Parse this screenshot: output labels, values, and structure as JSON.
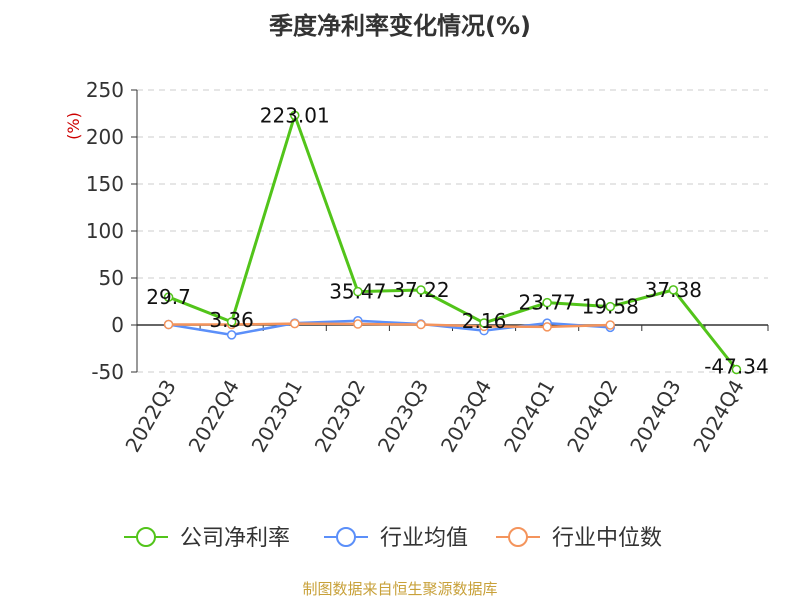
{
  "footer": "制图数据来自恒生聚源数据库",
  "chart_data": {
    "type": "line",
    "title": "季度净利率变化情况(%)",
    "ylabel": "(%)",
    "ylim": [
      -50,
      250
    ],
    "yticks": [
      -50,
      0,
      50,
      100,
      150,
      200,
      250
    ],
    "grid": true,
    "legend_position": "bottom",
    "categories": [
      "2022Q3",
      "2022Q4",
      "2023Q1",
      "2023Q2",
      "2023Q3",
      "2023Q4",
      "2024Q1",
      "2024Q2",
      "2024Q3",
      "2024Q4"
    ],
    "series": [
      {
        "name": "公司净利率",
        "color": "#52c41a",
        "values": [
          29.7,
          3.36,
          223.01,
          35.47,
          37.22,
          2.16,
          23.77,
          19.58,
          37.38,
          -47.34
        ],
        "labels": [
          "29.7",
          "3.36",
          "223.01",
          "35.47",
          "37.22",
          "2.16",
          "23.77",
          "19.58",
          "37.38",
          "-47.34"
        ]
      },
      {
        "name": "行业均值",
        "color": "#5b8ff9",
        "values": [
          0.5,
          -10.5,
          2.0,
          4.5,
          1.0,
          -6.0,
          2.0,
          -2.5,
          null,
          null
        ]
      },
      {
        "name": "行业中位数",
        "color": "#f4945c",
        "values": [
          0.5,
          0.5,
          1.5,
          1.0,
          0.5,
          -1.5,
          -2.0,
          0.0,
          null,
          null
        ]
      }
    ]
  }
}
